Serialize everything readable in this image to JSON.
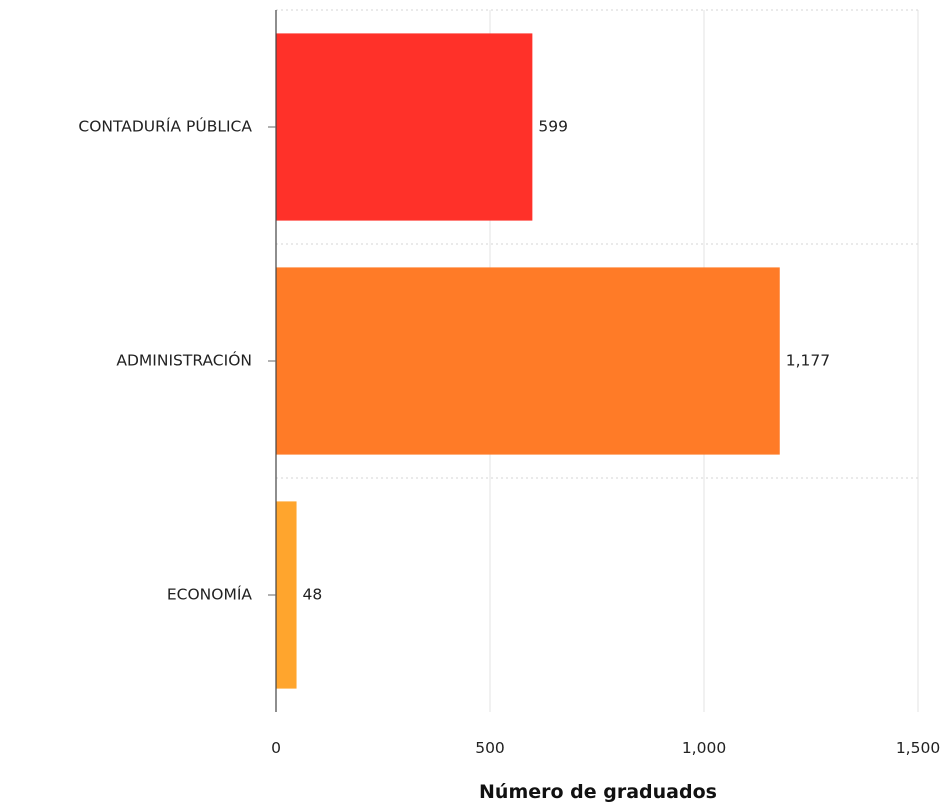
{
  "chart_data": {
    "type": "bar",
    "orientation": "horizontal",
    "categories": [
      "CONTADURÍA PÚBLICA",
      "ADMINISTRACIÓN",
      "ECONOMÍA"
    ],
    "values": [
      599,
      1177,
      48
    ],
    "value_labels": [
      "599",
      "1,177",
      "48"
    ],
    "colors": [
      "#ff3129",
      "#ff7b27",
      "#ffa52d"
    ],
    "xlabel": "Número de graduados",
    "ylabel": "",
    "xlim": [
      0,
      1500
    ],
    "x_ticks": [
      0,
      500,
      1000,
      1500
    ],
    "x_tick_labels": [
      "0",
      "500",
      "1,000",
      "1,500"
    ],
    "grid": true,
    "legend": "none"
  }
}
